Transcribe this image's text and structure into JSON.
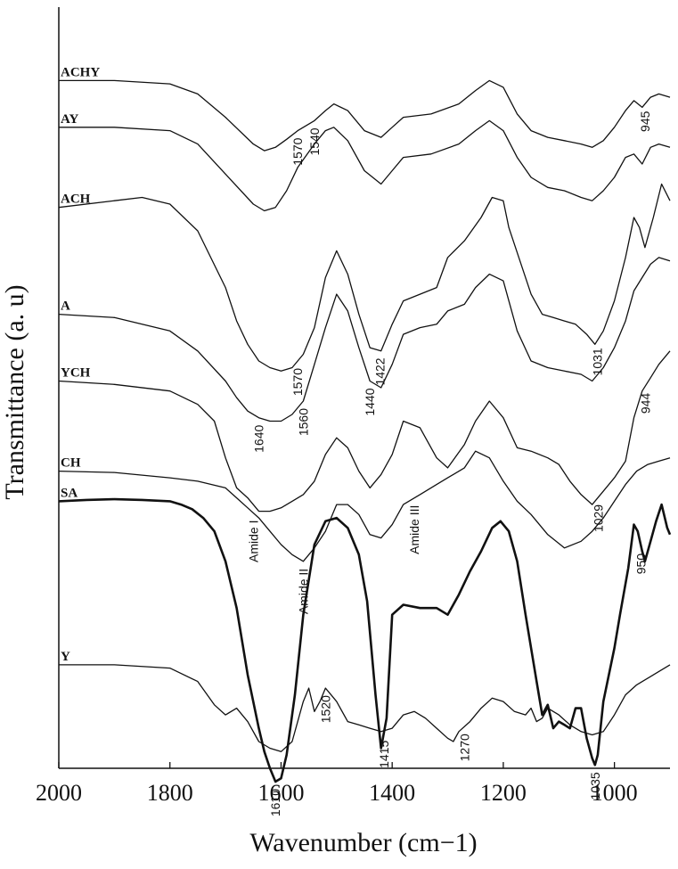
{
  "chart_data": {
    "type": "line",
    "xlabel": "Wavenumber (cm−1)",
    "ylabel": "Transmittance (a. u)",
    "xlim": [
      2000,
      900
    ],
    "x_reversed": true,
    "x_ticks": [
      2000,
      1800,
      1600,
      1400,
      1200,
      1000
    ],
    "y_ticks": [],
    "grid": false,
    "series": [
      {
        "name": "ACHY",
        "offset": 9.7,
        "bold": false,
        "x": [
          2000,
          1900,
          1800,
          1750,
          1700,
          1650,
          1630,
          1610,
          1590,
          1570,
          1540,
          1520,
          1505,
          1480,
          1450,
          1420,
          1400,
          1380,
          1330,
          1280,
          1250,
          1225,
          1200,
          1175,
          1150,
          1120,
          1090,
          1060,
          1040,
          1020,
          1000,
          980,
          965,
          950,
          935,
          920,
          900
        ],
        "y": [
          0,
          0,
          -0.05,
          -0.2,
          -0.55,
          -0.95,
          -1.05,
          -1.0,
          -0.88,
          -0.75,
          -0.6,
          -0.45,
          -0.35,
          -0.45,
          -0.75,
          -0.85,
          -0.7,
          -0.55,
          -0.5,
          -0.35,
          -0.15,
          0,
          -0.1,
          -0.5,
          -0.75,
          -0.85,
          -0.9,
          -0.95,
          -1.0,
          -0.9,
          -0.7,
          -0.45,
          -0.3,
          -0.4,
          -0.25,
          -0.2,
          -0.25
        ]
      },
      {
        "name": "AY",
        "offset": 9.0,
        "bold": false,
        "x": [
          2000,
          1900,
          1800,
          1750,
          1700,
          1650,
          1630,
          1610,
          1590,
          1570,
          1540,
          1520,
          1505,
          1480,
          1450,
          1420,
          1400,
          1380,
          1330,
          1280,
          1250,
          1225,
          1200,
          1175,
          1150,
          1120,
          1090,
          1060,
          1040,
          1020,
          1000,
          980,
          965,
          950,
          935,
          920,
          900
        ],
        "y": [
          0,
          0,
          -0.05,
          -0.25,
          -0.7,
          -1.15,
          -1.25,
          -1.2,
          -0.95,
          -0.6,
          -0.25,
          -0.05,
          0,
          -0.2,
          -0.65,
          -0.85,
          -0.65,
          -0.45,
          -0.4,
          -0.25,
          -0.05,
          0.1,
          -0.05,
          -0.45,
          -0.75,
          -0.9,
          -0.95,
          -1.05,
          -1.1,
          -0.95,
          -0.75,
          -0.45,
          -0.4,
          -0.55,
          -0.3,
          -0.25,
          -0.3
        ]
      },
      {
        "name": "ACH",
        "offset": 7.8,
        "bold": false,
        "x": [
          2000,
          1900,
          1850,
          1800,
          1750,
          1700,
          1680,
          1660,
          1640,
          1620,
          1600,
          1580,
          1560,
          1540,
          1520,
          1500,
          1480,
          1460,
          1440,
          1420,
          1400,
          1380,
          1350,
          1320,
          1300,
          1270,
          1240,
          1220,
          1200,
          1190,
          1170,
          1150,
          1130,
          1110,
          1090,
          1070,
          1050,
          1035,
          1020,
          1000,
          980,
          965,
          955,
          945,
          930,
          915,
          900
        ],
        "y": [
          0,
          0.1,
          0.15,
          0.05,
          -0.35,
          -1.2,
          -1.7,
          -2.05,
          -2.3,
          -2.4,
          -2.45,
          -2.4,
          -2.2,
          -1.8,
          -1.05,
          -0.65,
          -1.0,
          -1.6,
          -2.1,
          -2.15,
          -1.75,
          -1.4,
          -1.3,
          -1.2,
          -0.75,
          -0.5,
          -0.15,
          0.15,
          0.1,
          -0.3,
          -0.8,
          -1.3,
          -1.6,
          -1.65,
          -1.7,
          -1.75,
          -1.9,
          -2.05,
          -1.85,
          -1.4,
          -0.75,
          -0.15,
          -0.3,
          -0.6,
          -0.15,
          0.35,
          0.1
        ]
      },
      {
        "name": "A",
        "offset": 6.2,
        "bold": false,
        "x": [
          2000,
          1900,
          1800,
          1750,
          1700,
          1680,
          1660,
          1640,
          1620,
          1600,
          1580,
          1560,
          1540,
          1520,
          1500,
          1480,
          1460,
          1440,
          1420,
          1400,
          1380,
          1350,
          1320,
          1300,
          1270,
          1250,
          1225,
          1200,
          1175,
          1150,
          1120,
          1090,
          1060,
          1040,
          1020,
          1000,
          980,
          965,
          950,
          935,
          920,
          900
        ],
        "y": [
          0,
          -0.05,
          -0.25,
          -0.55,
          -1.0,
          -1.25,
          -1.45,
          -1.55,
          -1.6,
          -1.6,
          -1.5,
          -1.3,
          -0.75,
          -0.2,
          0.3,
          0.05,
          -0.5,
          -1.0,
          -1.1,
          -0.75,
          -0.3,
          -0.2,
          -0.15,
          0.05,
          0.15,
          0.4,
          0.6,
          0.5,
          -0.25,
          -0.7,
          -0.8,
          -0.85,
          -0.9,
          -1.0,
          -0.8,
          -0.5,
          -0.1,
          0.35,
          0.55,
          0.75,
          0.85,
          0.8
        ]
      },
      {
        "name": "YCH",
        "offset": 5.2,
        "bold": false,
        "x": [
          2000,
          1900,
          1800,
          1750,
          1720,
          1700,
          1680,
          1660,
          1640,
          1620,
          1600,
          1580,
          1560,
          1540,
          1520,
          1500,
          1480,
          1460,
          1440,
          1420,
          1400,
          1380,
          1350,
          1320,
          1300,
          1270,
          1250,
          1225,
          1200,
          1175,
          1150,
          1120,
          1100,
          1080,
          1060,
          1040,
          1020,
          1000,
          980,
          965,
          950,
          935,
          920,
          900
        ],
        "y": [
          0,
          -0.05,
          -0.15,
          -0.35,
          -0.6,
          -1.15,
          -1.6,
          -1.75,
          -1.95,
          -1.95,
          -1.9,
          -1.8,
          -1.7,
          -1.5,
          -1.1,
          -0.85,
          -1.0,
          -1.35,
          -1.6,
          -1.4,
          -1.1,
          -0.6,
          -0.7,
          -1.15,
          -1.3,
          -0.95,
          -0.6,
          -0.3,
          -0.55,
          -1.0,
          -1.05,
          -1.15,
          -1.25,
          -1.5,
          -1.7,
          -1.85,
          -1.65,
          -1.45,
          -1.2,
          -0.55,
          -0.15,
          0.05,
          0.25,
          0.45
        ]
      },
      {
        "name": "CH",
        "offset": 3.85,
        "bold": false,
        "x": [
          2000,
          1900,
          1800,
          1750,
          1700,
          1680,
          1660,
          1640,
          1620,
          1600,
          1580,
          1560,
          1540,
          1520,
          1500,
          1480,
          1460,
          1440,
          1420,
          1400,
          1380,
          1350,
          1320,
          1300,
          1270,
          1250,
          1225,
          1200,
          1175,
          1150,
          1120,
          1090,
          1060,
          1040,
          1020,
          1000,
          980,
          960,
          940,
          920,
          900
        ],
        "y": [
          0,
          -0.02,
          -0.1,
          -0.15,
          -0.25,
          -0.4,
          -0.55,
          -0.7,
          -0.9,
          -1.1,
          -1.25,
          -1.35,
          -1.15,
          -0.9,
          -0.5,
          -0.5,
          -0.65,
          -0.95,
          -1.0,
          -0.8,
          -0.5,
          -0.35,
          -0.2,
          -0.1,
          0.05,
          0.3,
          0.2,
          -0.15,
          -0.45,
          -0.65,
          -0.95,
          -1.15,
          -1.05,
          -0.9,
          -0.7,
          -0.45,
          -0.2,
          0.0,
          0.1,
          0.15,
          0.2
        ]
      },
      {
        "name": "SA",
        "offset": 3.4,
        "bold": true,
        "x": [
          2000,
          1950,
          1900,
          1850,
          1800,
          1780,
          1760,
          1740,
          1720,
          1700,
          1680,
          1660,
          1640,
          1630,
          1620,
          1610,
          1600,
          1590,
          1575,
          1560,
          1540,
          1520,
          1500,
          1480,
          1460,
          1445,
          1430,
          1420,
          1410,
          1400,
          1380,
          1350,
          1320,
          1300,
          1280,
          1260,
          1240,
          1220,
          1205,
          1200,
          1190,
          1175,
          1160,
          1150,
          1140,
          1130,
          1120,
          1110,
          1100,
          1090,
          1080,
          1070,
          1060,
          1050,
          1040,
          1035,
          1030,
          1020,
          1000,
          990,
          975,
          965,
          958,
          950,
          945,
          935,
          925,
          915,
          905,
          900
        ],
        "y": [
          0,
          0.02,
          0.03,
          0.02,
          0.0,
          -0.05,
          -0.12,
          -0.25,
          -0.45,
          -0.9,
          -1.6,
          -2.6,
          -3.4,
          -3.75,
          -4.0,
          -4.2,
          -4.15,
          -3.8,
          -2.9,
          -1.7,
          -0.65,
          -0.3,
          -0.25,
          -0.4,
          -0.8,
          -1.5,
          -2.9,
          -3.7,
          -3.25,
          -1.7,
          -1.55,
          -1.6,
          -1.6,
          -1.7,
          -1.4,
          -1.05,
          -0.75,
          -0.4,
          -0.3,
          -0.35,
          -0.45,
          -0.9,
          -1.7,
          -2.2,
          -2.7,
          -3.2,
          -3.05,
          -3.4,
          -3.3,
          -3.35,
          -3.4,
          -3.1,
          -3.1,
          -3.55,
          -3.85,
          -3.95,
          -3.8,
          -3.0,
          -2.2,
          -1.7,
          -1.0,
          -0.35,
          -0.45,
          -0.75,
          -0.9,
          -0.6,
          -0.3,
          -0.05,
          -0.4,
          -0.5
        ]
      },
      {
        "name": "Y",
        "offset": 0.95,
        "bold": false,
        "x": [
          2000,
          1900,
          1800,
          1750,
          1720,
          1700,
          1680,
          1660,
          1640,
          1620,
          1600,
          1580,
          1560,
          1550,
          1540,
          1530,
          1520,
          1510,
          1500,
          1480,
          1460,
          1440,
          1420,
          1400,
          1380,
          1360,
          1340,
          1320,
          1300,
          1290,
          1280,
          1260,
          1240,
          1220,
          1200,
          1180,
          1160,
          1150,
          1140,
          1130,
          1120,
          1100,
          1080,
          1060,
          1040,
          1020,
          1000,
          980,
          960,
          940,
          920,
          900
        ],
        "y": [
          0,
          0,
          -0.05,
          -0.25,
          -0.6,
          -0.75,
          -0.65,
          -0.85,
          -1.15,
          -1.25,
          -1.3,
          -1.15,
          -0.55,
          -0.35,
          -0.7,
          -0.55,
          -0.35,
          -0.45,
          -0.55,
          -0.85,
          -0.9,
          -0.95,
          -1.0,
          -0.95,
          -0.75,
          -0.7,
          -0.8,
          -0.95,
          -1.1,
          -1.15,
          -1.0,
          -0.85,
          -0.65,
          -0.5,
          -0.55,
          -0.7,
          -0.75,
          -0.65,
          -0.85,
          -0.8,
          -0.65,
          -0.75,
          -0.9,
          -1.0,
          -1.05,
          -1.0,
          -0.75,
          -0.45,
          -0.3,
          -0.2,
          -0.1,
          0.0
        ]
      }
    ],
    "annotations": [
      {
        "text": "1570",
        "x": 1570,
        "series": "ACHY",
        "rotate": true
      },
      {
        "text": "1540",
        "x": 1540,
        "series": "ACHY",
        "rotate": true
      },
      {
        "text": "945",
        "x": 945,
        "series": "ACHY",
        "rotate": true
      },
      {
        "text": "1570",
        "x": 1570,
        "series": "ACH",
        "rotate": true
      },
      {
        "text": "1422",
        "x": 1422,
        "series": "ACH",
        "rotate": true
      },
      {
        "text": "1031",
        "x": 1031,
        "series": "ACH",
        "rotate": true
      },
      {
        "text": "1640",
        "x": 1640,
        "series": "A",
        "rotate": true
      },
      {
        "text": "1560",
        "x": 1560,
        "series": "A",
        "rotate": true
      },
      {
        "text": "1440",
        "x": 1440,
        "series": "A",
        "rotate": true
      },
      {
        "text": "944",
        "x": 944,
        "series": "YCH",
        "rotate": true
      },
      {
        "text": "1029",
        "x": 1029,
        "series": "YCH",
        "rotate": true
      },
      {
        "text": "Amide I",
        "x": 1650,
        "series": "CH",
        "rotate": true
      },
      {
        "text": "Amide II",
        "x": 1560,
        "series": "CH",
        "rotate": true
      },
      {
        "text": "Amide III",
        "x": 1360,
        "series": "CH",
        "rotate": true
      },
      {
        "text": "950",
        "x": 952,
        "series": "SA",
        "rotate": true
      },
      {
        "text": "1610",
        "x": 1610,
        "series": "SA",
        "rotate": true
      },
      {
        "text": "1415",
        "x": 1415,
        "series": "SA",
        "rotate": true
      },
      {
        "text": "1035",
        "x": 1035,
        "series": "SA",
        "rotate": true
      },
      {
        "text": "1520",
        "x": 1520,
        "series": "Y",
        "rotate": true
      },
      {
        "text": "1270",
        "x": 1270,
        "series": "Y",
        "rotate": true
      }
    ]
  }
}
